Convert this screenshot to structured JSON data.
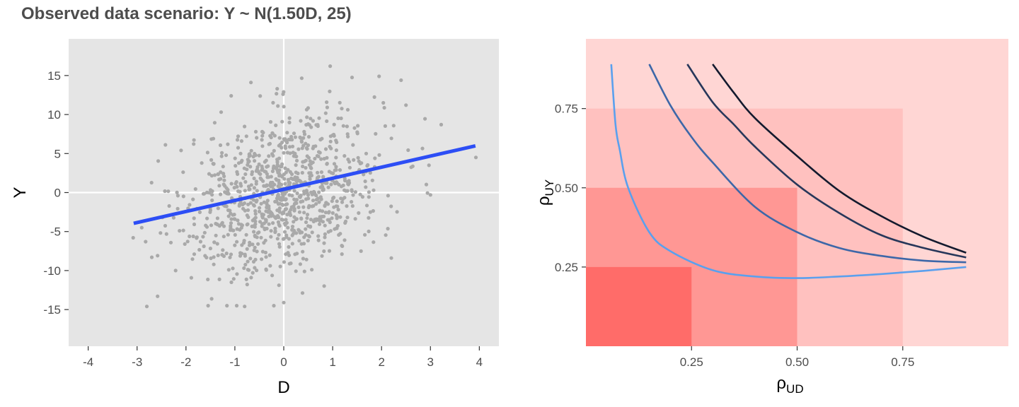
{
  "title": "Observed data scenario: Y ~ N(1.50D, 25)",
  "colors": {
    "panel_bg": "#e5e5e5",
    "grid": "#ffffff",
    "points": "#a9a9a9",
    "fit": "#2d4ef5",
    "region_outer": "#ffd6d4",
    "region_3": "#ffc1bf",
    "region_2": "#ff9794",
    "region_1": "#ff6c69",
    "curves": [
      "#5aa0ee",
      "#3d67a8",
      "#27375a",
      "#131a2e"
    ]
  },
  "chart_data": [
    {
      "type": "scatter",
      "xlabel": "D",
      "ylabel": "Y",
      "xlim": [
        -4.4,
        4.4
      ],
      "ylim": [
        -19.7,
        19.7
      ],
      "xticks": [
        "-4",
        "-3",
        "-2",
        "-1",
        "0",
        "1",
        "2",
        "3",
        "4"
      ],
      "yticks": [
        "-15",
        "-10",
        "-5",
        "0",
        "5",
        "10",
        "15"
      ],
      "n_points": 1000,
      "sample_points": [
        {
          "x": 0.95,
          "y": 16.2
        },
        {
          "x": 3.93,
          "y": 4.5
        },
        {
          "x": -3.08,
          "y": -5.8
        },
        {
          "x": -2.8,
          "y": -14.6
        },
        {
          "x": -2.58,
          "y": -13.3
        },
        {
          "x": -0.8,
          "y": -14.6
        },
        {
          "x": 0.0,
          "y": -14.1
        },
        {
          "x": 2.4,
          "y": 14.4
        },
        {
          "x": 1.95,
          "y": 14.9
        },
        {
          "x": 2.97,
          "y": 3.5
        },
        {
          "x": 3.0,
          "y": -0.3
        },
        {
          "x": 2.2,
          "y": -8.4
        },
        {
          "x": 2.5,
          "y": 11.2
        },
        {
          "x": -2.1,
          "y": 5.4
        },
        {
          "x": -2.7,
          "y": -8.3
        }
      ],
      "fit_line": {
        "x": [
          -3.07,
          3.92
        ],
        "y": [
          -3.95,
          5.98
        ]
      }
    },
    {
      "type": "line",
      "xlabel": "ρ_UD",
      "ylabel": "ρ_UY",
      "xlim": [
        0.0,
        1.0
      ],
      "ylim": [
        0.0,
        0.97
      ],
      "xticks": [
        "0.25",
        "0.50",
        "0.75"
      ],
      "yticks": [
        "0.25",
        "0.50",
        "0.75"
      ],
      "regions": [
        {
          "x_max": 1.0,
          "y_max": 0.97
        },
        {
          "x_max": 0.75,
          "y_max": 0.75
        },
        {
          "x_max": 0.5,
          "y_max": 0.5
        },
        {
          "x_max": 0.25,
          "y_max": 0.25
        }
      ],
      "series": [
        {
          "x": [
            0.06,
            0.07,
            0.08,
            0.1,
            0.15,
            0.2,
            0.3,
            0.4,
            0.5,
            0.6,
            0.7,
            0.8,
            0.9
          ],
          "y": [
            0.89,
            0.7,
            0.62,
            0.5,
            0.36,
            0.3,
            0.24,
            0.22,
            0.215,
            0.22,
            0.228,
            0.238,
            0.25
          ]
        },
        {
          "x": [
            0.15,
            0.2,
            0.25,
            0.3,
            0.4,
            0.5,
            0.6,
            0.7,
            0.8,
            0.9
          ],
          "y": [
            0.89,
            0.76,
            0.66,
            0.58,
            0.44,
            0.36,
            0.31,
            0.285,
            0.27,
            0.265
          ]
        },
        {
          "x": [
            0.24,
            0.3,
            0.35,
            0.4,
            0.5,
            0.6,
            0.7,
            0.8,
            0.9
          ],
          "y": [
            0.89,
            0.77,
            0.7,
            0.63,
            0.51,
            0.42,
            0.35,
            0.31,
            0.28
          ]
        },
        {
          "x": [
            0.3,
            0.35,
            0.4,
            0.5,
            0.6,
            0.7,
            0.8,
            0.9
          ],
          "y": [
            0.89,
            0.8,
            0.72,
            0.6,
            0.49,
            0.41,
            0.345,
            0.295
          ]
        }
      ]
    }
  ]
}
